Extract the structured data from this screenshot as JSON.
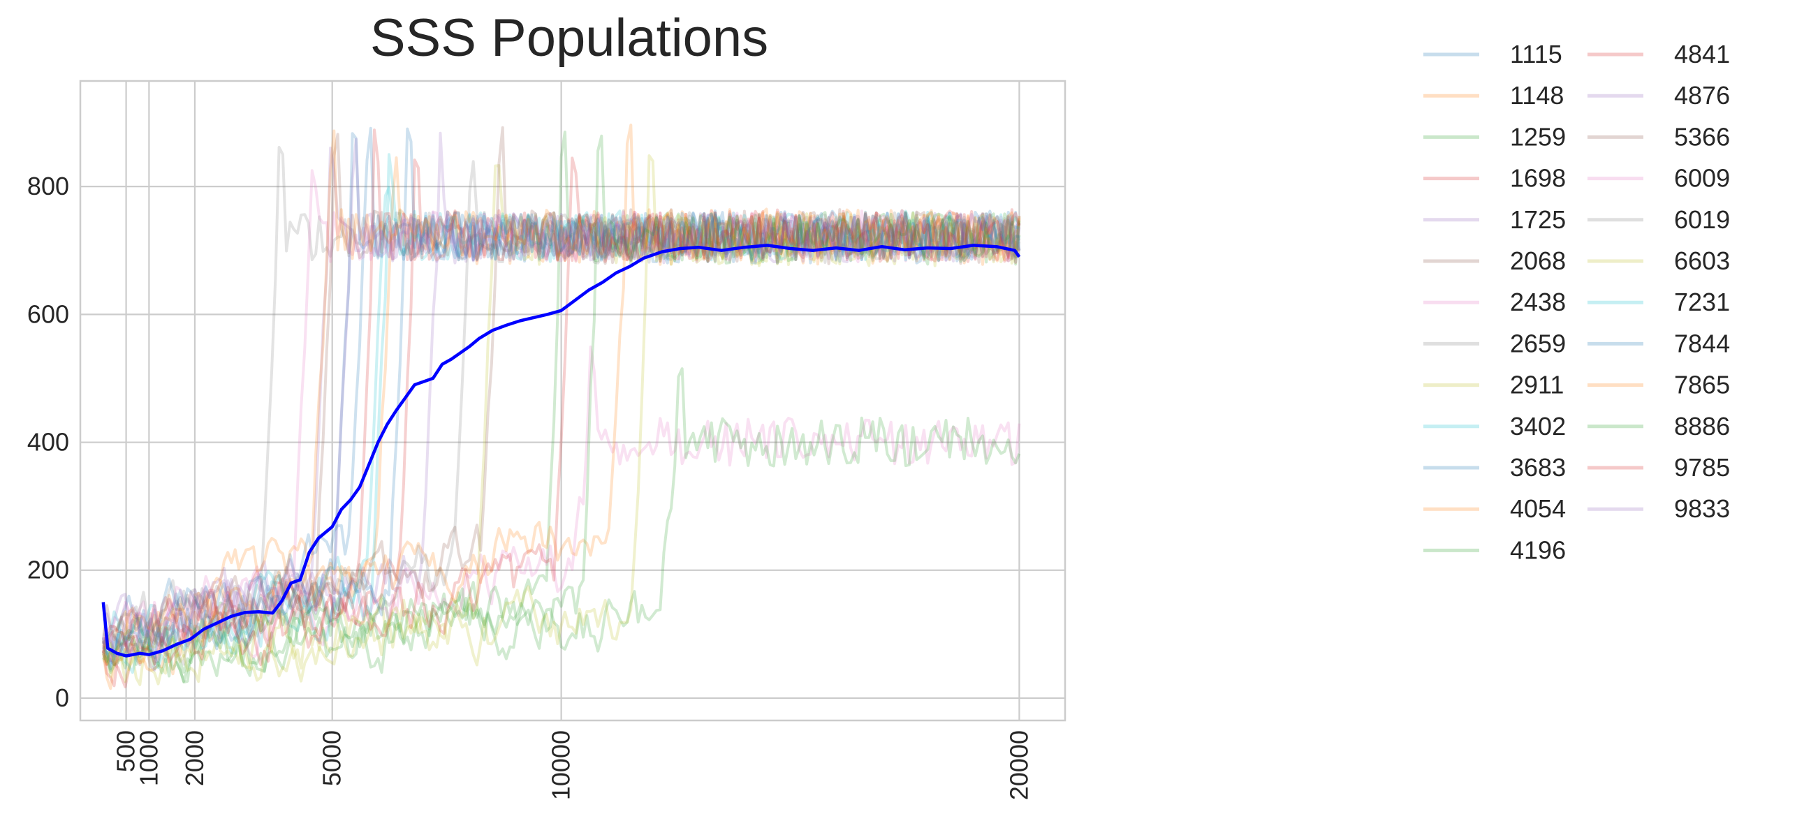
{
  "chart_data": {
    "type": "line",
    "title": "SSS Populations",
    "xlabel": "",
    "ylabel": "",
    "xlim": [
      -500,
      21000
    ],
    "ylim": [
      -35,
      965
    ],
    "x_ticks": [
      500,
      1000,
      2000,
      5000,
      10000,
      20000
    ],
    "x_tick_labels": [
      "500",
      "1000",
      "2000",
      "5000",
      "10000",
      "20000"
    ],
    "y_ticks": [
      0,
      200,
      400,
      600,
      800
    ],
    "y_tick_labels": [
      "0",
      "200",
      "400",
      "600",
      "800"
    ],
    "grid": true,
    "legend_position": "outside-right",
    "legend_columns": 2,
    "mean_series": {
      "color": "#0000ff",
      "points": [
        [
          0,
          150
        ],
        [
          100,
          78
        ],
        [
          300,
          70
        ],
        [
          500,
          66
        ],
        [
          800,
          70
        ],
        [
          1000,
          68
        ],
        [
          1300,
          74
        ],
        [
          1600,
          84
        ],
        [
          1900,
          92
        ],
        [
          2200,
          108
        ],
        [
          2500,
          118
        ],
        [
          2800,
          128
        ],
        [
          3100,
          134
        ],
        [
          3400,
          135
        ],
        [
          3700,
          133
        ],
        [
          3900,
          152
        ],
        [
          4100,
          180
        ],
        [
          4300,
          185
        ],
        [
          4500,
          228
        ],
        [
          4700,
          250
        ],
        [
          5000,
          268
        ],
        [
          5200,
          295
        ],
        [
          5400,
          310
        ],
        [
          5600,
          330
        ],
        [
          5800,
          365
        ],
        [
          6000,
          400
        ],
        [
          6200,
          428
        ],
        [
          6400,
          450
        ],
        [
          6600,
          470
        ],
        [
          6800,
          490
        ],
        [
          7000,
          495
        ],
        [
          7200,
          500
        ],
        [
          7400,
          522
        ],
        [
          7600,
          530
        ],
        [
          7800,
          540
        ],
        [
          8000,
          550
        ],
        [
          8200,
          562
        ],
        [
          8500,
          575
        ],
        [
          8800,
          583
        ],
        [
          9100,
          590
        ],
        [
          9400,
          595
        ],
        [
          9700,
          600
        ],
        [
          10000,
          606
        ],
        [
          10300,
          622
        ],
        [
          10600,
          638
        ],
        [
          10900,
          650
        ],
        [
          11200,
          665
        ],
        [
          11500,
          675
        ],
        [
          11800,
          688
        ],
        [
          12200,
          698
        ],
        [
          12600,
          703
        ],
        [
          13000,
          705
        ],
        [
          13500,
          700
        ],
        [
          14000,
          705
        ],
        [
          14500,
          708
        ],
        [
          15000,
          703
        ],
        [
          15500,
          700
        ],
        [
          16000,
          704
        ],
        [
          16500,
          700
        ],
        [
          17000,
          706
        ],
        [
          17500,
          701
        ],
        [
          18000,
          704
        ],
        [
          18500,
          703
        ],
        [
          19000,
          708
        ],
        [
          19500,
          706
        ],
        [
          19900,
          700
        ],
        [
          20000,
          690
        ]
      ]
    },
    "series": [
      {
        "name": "1115",
        "color": "#1f77b4",
        "jump_x": 5400,
        "high": 722,
        "amp": 38,
        "low_start": 95,
        "low_end": 190
      },
      {
        "name": "1148",
        "color": "#ff7f0e",
        "jump_x": 6300,
        "high": 718,
        "amp": 40,
        "low_start": 80,
        "low_end": 220
      },
      {
        "name": "1259",
        "color": "#2ca02c",
        "jump_x": 10000,
        "high": 720,
        "amp": 40,
        "low_start": 70,
        "low_end": 150
      },
      {
        "name": "1698",
        "color": "#d62728",
        "jump_x": 6800,
        "high": 724,
        "amp": 40,
        "low_start": 75,
        "low_end": 180
      },
      {
        "name": "1725",
        "color": "#9467bd",
        "jump_x": 7300,
        "high": 720,
        "amp": 38,
        "low_start": 80,
        "low_end": 200
      },
      {
        "name": "2068",
        "color": "#8c564b",
        "jump_x": 5000,
        "high": 725,
        "amp": 40,
        "low_start": 90,
        "low_end": 170
      },
      {
        "name": "2438",
        "color": "#e377c2",
        "jump_x": 10600,
        "high": 400,
        "amp": 38,
        "low_start": 85,
        "low_end": 200
      },
      {
        "name": "2659",
        "color": "#7f7f7f",
        "jump_x": 3800,
        "high": 722,
        "amp": 38,
        "low_start": 100,
        "low_end": 180
      },
      {
        "name": "2911",
        "color": "#bcbd22",
        "jump_x": 8500,
        "high": 718,
        "amp": 40,
        "low_start": 60,
        "low_end": 120
      },
      {
        "name": "3402",
        "color": "#17becf",
        "jump_x": 6200,
        "high": 722,
        "amp": 40,
        "low_start": 80,
        "low_end": 160
      },
      {
        "name": "3683",
        "color": "#1f77b4",
        "jump_x": 5700,
        "high": 720,
        "amp": 40,
        "low_start": 90,
        "low_end": 230
      },
      {
        "name": "4054",
        "color": "#ff7f0e",
        "jump_x": 11400,
        "high": 724,
        "amp": 40,
        "low_start": 70,
        "low_end": 260
      },
      {
        "name": "4196",
        "color": "#2ca02c",
        "jump_x": 12500,
        "high": 400,
        "amp": 38,
        "low_start": 60,
        "low_end": 130
      },
      {
        "name": "4841",
        "color": "#d62728",
        "jump_x": 5900,
        "high": 722,
        "amp": 40,
        "low_start": 75,
        "low_end": 160
      },
      {
        "name": "4876",
        "color": "#9467bd",
        "jump_x": 4900,
        "high": 720,
        "amp": 38,
        "low_start": 85,
        "low_end": 190
      },
      {
        "name": "5366",
        "color": "#8c564b",
        "jump_x": 8600,
        "high": 718,
        "amp": 40,
        "low_start": 70,
        "low_end": 220
      },
      {
        "name": "6009",
        "color": "#e377c2",
        "jump_x": 4500,
        "high": 722,
        "amp": 40,
        "low_start": 95,
        "low_end": 200
      },
      {
        "name": "6019",
        "color": "#7f7f7f",
        "jump_x": 8000,
        "high": 720,
        "amp": 40,
        "low_start": 80,
        "low_end": 210
      },
      {
        "name": "6603",
        "color": "#bcbd22",
        "jump_x": 11900,
        "high": 716,
        "amp": 40,
        "low_start": 60,
        "low_end": 120
      },
      {
        "name": "7231",
        "color": "#17becf",
        "jump_x": 6100,
        "high": 722,
        "amp": 38,
        "low_start": 85,
        "low_end": 180
      },
      {
        "name": "7844",
        "color": "#1f77b4",
        "jump_x": 6600,
        "high": 722,
        "amp": 40,
        "low_start": 80,
        "low_end": 190
      },
      {
        "name": "7865",
        "color": "#ff7f0e",
        "jump_x": 4900,
        "high": 725,
        "amp": 40,
        "low_start": 90,
        "low_end": 230
      },
      {
        "name": "8886",
        "color": "#2ca02c",
        "jump_x": 10800,
        "high": 718,
        "amp": 40,
        "low_start": 70,
        "low_end": 150
      },
      {
        "name": "9785",
        "color": "#d62728",
        "jump_x": 10200,
        "high": 722,
        "amp": 40,
        "low_start": 75,
        "low_end": 180
      },
      {
        "name": "9833",
        "color": "#9467bd",
        "jump_x": 5400,
        "high": 720,
        "amp": 40,
        "low_start": 85,
        "low_end": 190
      }
    ]
  }
}
